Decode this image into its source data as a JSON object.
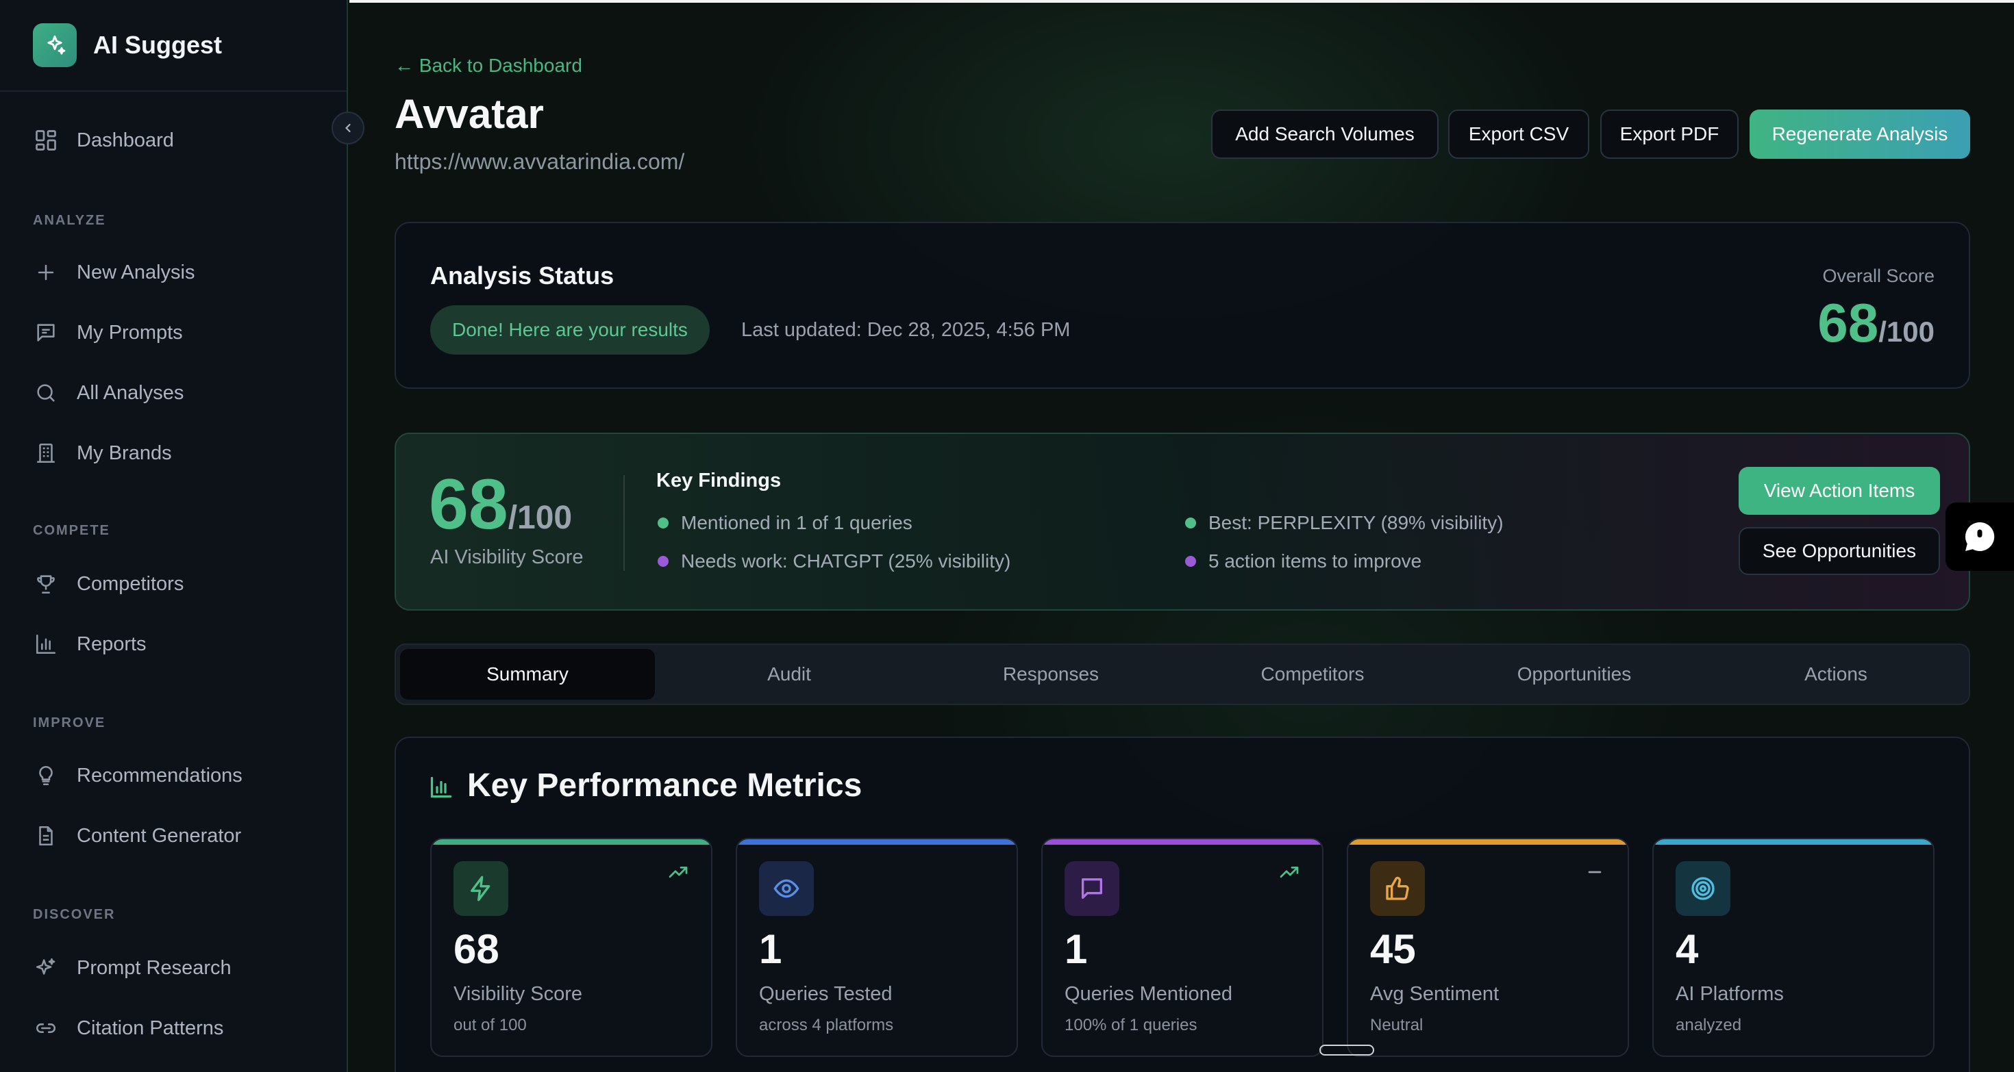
{
  "brand": {
    "name": "AI Suggest"
  },
  "sidebar": {
    "dashboard": "Dashboard",
    "sections": [
      {
        "label": "ANALYZE",
        "items": [
          "New Analysis",
          "My Prompts",
          "All Analyses",
          "My Brands"
        ]
      },
      {
        "label": "COMPETE",
        "items": [
          "Competitors",
          "Reports"
        ]
      },
      {
        "label": "IMPROVE",
        "items": [
          "Recommendations",
          "Content Generator"
        ]
      },
      {
        "label": "DISCOVER",
        "items": [
          "Prompt Research",
          "Citation Patterns"
        ]
      }
    ]
  },
  "header": {
    "back": "← Back to Dashboard",
    "title": "Avvatar",
    "url": "https://www.avvatarindia.com/",
    "buttons": {
      "add_search_volumes": "Add Search Volumes",
      "export_csv": "Export CSV",
      "export_pdf": "Export PDF",
      "regenerate": "Regenerate Analysis"
    }
  },
  "status": {
    "title": "Analysis Status",
    "pill": "Done! Here are your results",
    "updated": "Last updated: Dec 28, 2025, 4:56 PM",
    "overall_label": "Overall Score",
    "overall_value": "68",
    "overall_den": "/100"
  },
  "visibility": {
    "score": "68",
    "den": "/100",
    "label": "AI Visibility Score",
    "findings_title": "Key Findings",
    "findings": [
      "Mentioned in 1 of 1 queries",
      "Needs work: CHATGPT (25% visibility)",
      "Best: PERPLEXITY (89% visibility)",
      "5 action items to improve"
    ],
    "view_action_items": "View Action Items",
    "see_opportunities": "See Opportunities"
  },
  "tabs": [
    "Summary",
    "Audit",
    "Responses",
    "Competitors",
    "Opportunities",
    "Actions"
  ],
  "metrics": {
    "title": "Key Performance Metrics",
    "cards": [
      {
        "value": "68",
        "label": "Visibility Score",
        "sub": "out of 100",
        "color": "#3fae83",
        "icon": "bolt-icon",
        "trend": "trend-up-icon"
      },
      {
        "value": "1",
        "label": "Queries Tested",
        "sub": "across 4 platforms",
        "color": "#3b74d6",
        "icon": "eye-icon",
        "trend": ""
      },
      {
        "value": "1",
        "label": "Queries Mentioned",
        "sub": "100% of 1 queries",
        "color": "#9b4ed6",
        "icon": "chat-icon",
        "trend": "trend-up-icon"
      },
      {
        "value": "45",
        "label": "Avg Sentiment",
        "sub": "Neutral",
        "color": "#e09a2e",
        "icon": "thumbs-up-icon",
        "trend": "trend-flat-icon"
      },
      {
        "value": "4",
        "label": "AI Platforms",
        "sub": "analyzed",
        "color": "#3aa6c9",
        "icon": "target-icon",
        "trend": ""
      }
    ]
  }
}
